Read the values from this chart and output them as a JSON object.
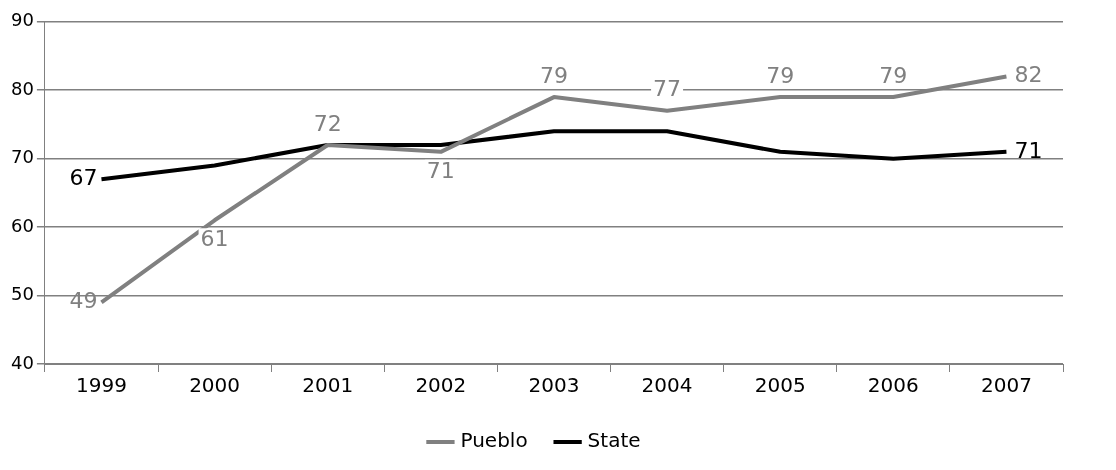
{
  "chart_data": {
    "type": "line",
    "categories": [
      "1999",
      "2000",
      "2001",
      "2002",
      "2003",
      "2004",
      "2005",
      "2006",
      "2007"
    ],
    "series": [
      {
        "name": "Pueblo",
        "color": "#808080",
        "values": [
          49,
          61,
          72,
          71,
          79,
          77,
          79,
          79,
          82
        ],
        "value_labels": [
          "49",
          "61",
          "72",
          "71",
          "79",
          "77",
          "79",
          "79",
          "82"
        ]
      },
      {
        "name": "State",
        "color": "#000000",
        "values": [
          67,
          69,
          72,
          72,
          74,
          74,
          71,
          70,
          71
        ],
        "value_labels": [
          "67",
          null,
          null,
          null,
          null,
          null,
          null,
          null,
          "71"
        ]
      }
    ],
    "ylim": [
      40,
      90
    ],
    "yticks": [
      40,
      50,
      60,
      70,
      80,
      90
    ],
    "grid": "y",
    "legend": "bottom",
    "marker": "none",
    "line_style": "solid"
  }
}
